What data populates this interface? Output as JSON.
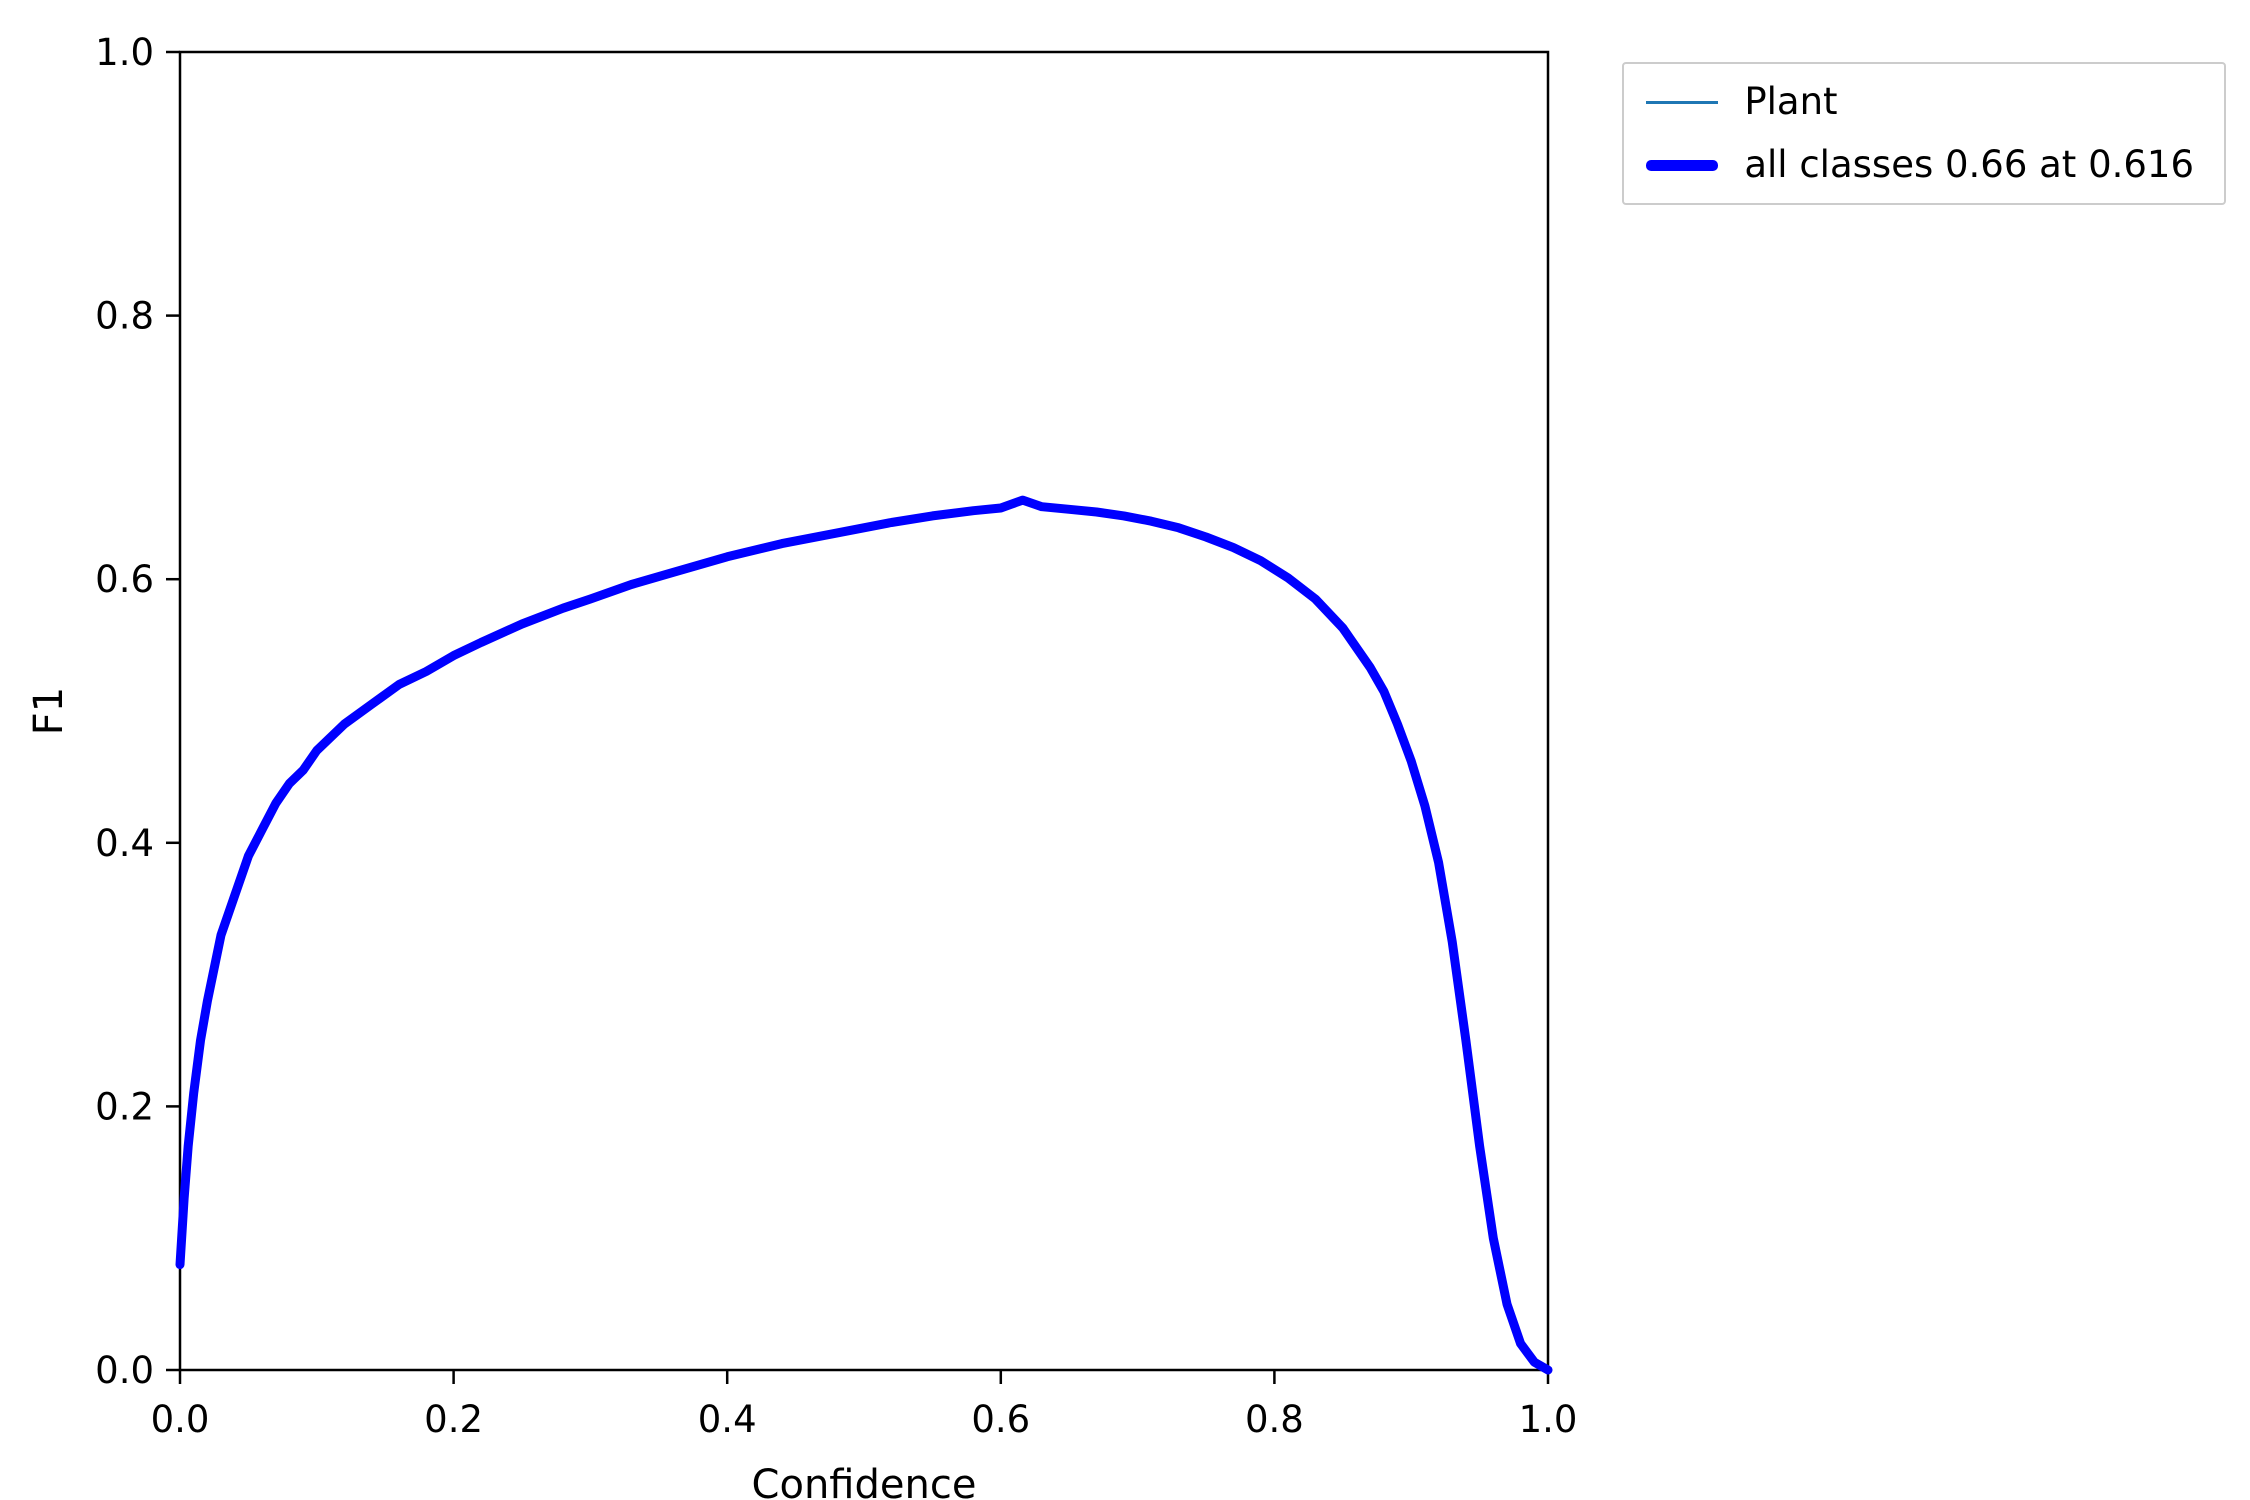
{
  "chart_data": {
    "type": "line",
    "title": "",
    "xlabel": "Confidence",
    "ylabel": "F1",
    "xlim": [
      0.0,
      1.0
    ],
    "ylim": [
      0.0,
      1.0
    ],
    "grid": false,
    "legend_position": "upper right, outside axes",
    "xticks": [
      "0.0",
      "0.2",
      "0.4",
      "0.6",
      "0.8",
      "1.0"
    ],
    "yticks": [
      "0.0",
      "0.2",
      "0.4",
      "0.6",
      "0.8",
      "1.0"
    ],
    "x": [
      0.0,
      0.003,
      0.006,
      0.01,
      0.015,
      0.02,
      0.03,
      0.04,
      0.05,
      0.06,
      0.07,
      0.08,
      0.09,
      0.1,
      0.12,
      0.14,
      0.16,
      0.18,
      0.2,
      0.22,
      0.25,
      0.28,
      0.3,
      0.33,
      0.36,
      0.4,
      0.44,
      0.48,
      0.52,
      0.55,
      0.58,
      0.6,
      0.616,
      0.63,
      0.65,
      0.67,
      0.69,
      0.71,
      0.73,
      0.75,
      0.77,
      0.79,
      0.81,
      0.83,
      0.85,
      0.87,
      0.88,
      0.89,
      0.9,
      0.91,
      0.92,
      0.93,
      0.94,
      0.95,
      0.96,
      0.97,
      0.98,
      0.99,
      1.0
    ],
    "y": [
      0.08,
      0.13,
      0.17,
      0.21,
      0.25,
      0.28,
      0.33,
      0.36,
      0.39,
      0.41,
      0.43,
      0.445,
      0.455,
      0.47,
      0.49,
      0.505,
      0.52,
      0.53,
      0.542,
      0.552,
      0.566,
      0.578,
      0.585,
      0.596,
      0.605,
      0.617,
      0.627,
      0.635,
      0.643,
      0.648,
      0.652,
      0.654,
      0.66,
      0.655,
      0.653,
      0.651,
      0.648,
      0.644,
      0.639,
      0.632,
      0.624,
      0.614,
      0.601,
      0.585,
      0.563,
      0.533,
      0.515,
      0.49,
      0.462,
      0.428,
      0.385,
      0.325,
      0.25,
      0.17,
      0.1,
      0.05,
      0.02,
      0.006,
      0.0
    ],
    "series": [
      {
        "name": "Plant",
        "color": "#1f77b4",
        "stroke_width": 2.5
      },
      {
        "name": "all classes 0.66 at 0.616",
        "color": "#0000ff",
        "stroke_width": 9
      }
    ],
    "legend": [
      {
        "label": "Plant",
        "color": "#1f77b4",
        "style": "thin"
      },
      {
        "label": "all classes 0.66 at 0.616",
        "color": "#0000ff",
        "style": "thick"
      }
    ],
    "axis_color": "#000000",
    "tick_font_size": 37,
    "axis_label_font_size": 40
  }
}
